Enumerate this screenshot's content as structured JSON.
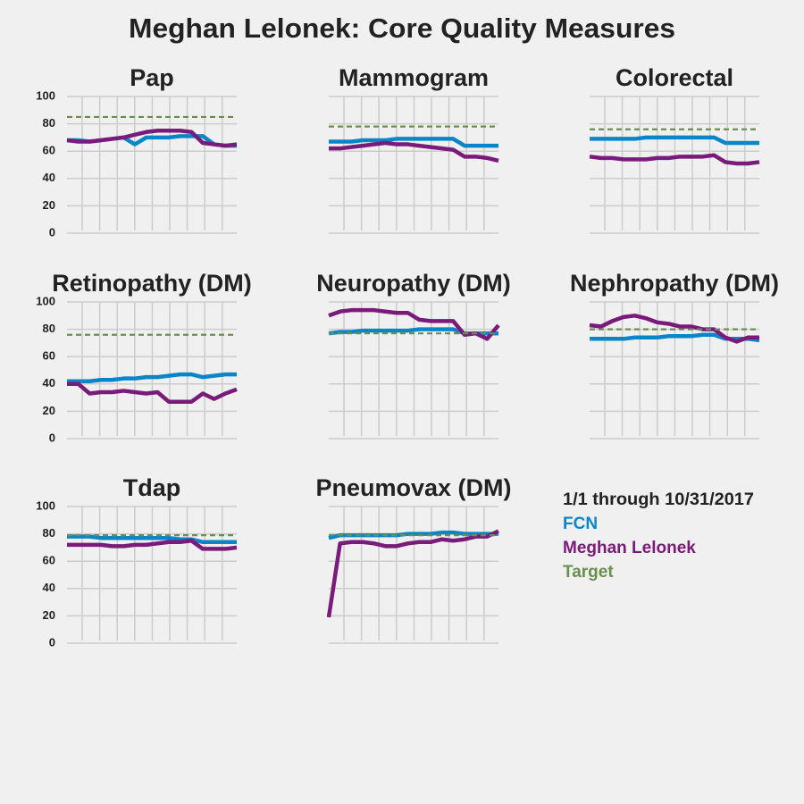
{
  "title": "Meghan Lelonek: Core Quality Measures",
  "legend_title": "1/1 through 10/31/2017",
  "chart_data": [
    {
      "type": "line",
      "title": "Pap",
      "ylim": [
        0,
        100
      ],
      "yticks": [
        0,
        20,
        40,
        60,
        80,
        100
      ],
      "ytick_labels": true,
      "grid": true,
      "categories": [
        null,
        null,
        null,
        null,
        null,
        null,
        null,
        null,
        null,
        null,
        null,
        null,
        null,
        null,
        null,
        null
      ],
      "series": [
        {
          "name": "FCN",
          "color": "#0a86c8",
          "values": [
            68,
            68,
            67,
            68,
            69,
            70,
            65,
            70,
            70,
            70,
            71,
            71,
            71,
            65,
            64,
            64
          ]
        },
        {
          "name": "Meghan Lelonek",
          "color": "#7a1a7a",
          "values": [
            68,
            67,
            67,
            68,
            69,
            70,
            72,
            74,
            75,
            75,
            75,
            74,
            66,
            65,
            64,
            65
          ]
        },
        {
          "name": "Target",
          "color": "#6a8f4d",
          "dashed": true,
          "value": 85
        }
      ]
    },
    {
      "type": "line",
      "title": "Mammogram",
      "ylim": [
        0,
        100
      ],
      "yticks": [
        0,
        20,
        40,
        60,
        80,
        100
      ],
      "ytick_labels": false,
      "grid": true,
      "categories": [
        null,
        null,
        null,
        null,
        null,
        null,
        null,
        null,
        null,
        null,
        null,
        null,
        null,
        null,
        null,
        null
      ],
      "series": [
        {
          "name": "FCN",
          "color": "#0a86c8",
          "values": [
            67,
            67,
            67,
            68,
            68,
            68,
            69,
            69,
            69,
            69,
            69,
            69,
            64,
            64,
            64,
            64
          ]
        },
        {
          "name": "Meghan Lelonek",
          "color": "#7a1a7a",
          "values": [
            62,
            62,
            63,
            64,
            65,
            66,
            65,
            65,
            64,
            63,
            62,
            61,
            56,
            56,
            55,
            53
          ]
        },
        {
          "name": "Target",
          "color": "#6a8f4d",
          "dashed": true,
          "value": 78
        }
      ]
    },
    {
      "type": "line",
      "title": "Colorectal",
      "ylim": [
        0,
        100
      ],
      "yticks": [
        0,
        20,
        40,
        60,
        80,
        100
      ],
      "ytick_labels": false,
      "grid": true,
      "categories": [
        null,
        null,
        null,
        null,
        null,
        null,
        null,
        null,
        null,
        null,
        null,
        null,
        null,
        null,
        null,
        null
      ],
      "series": [
        {
          "name": "FCN",
          "color": "#0a86c8",
          "values": [
            69,
            69,
            69,
            69,
            69,
            70,
            70,
            70,
            70,
            70,
            70,
            70,
            66,
            66,
            66,
            66
          ]
        },
        {
          "name": "Meghan Lelonek",
          "color": "#7a1a7a",
          "values": [
            56,
            55,
            55,
            54,
            54,
            54,
            55,
            55,
            56,
            56,
            56,
            57,
            52,
            51,
            51,
            52
          ]
        },
        {
          "name": "Target",
          "color": "#6a8f4d",
          "dashed": true,
          "value": 76
        }
      ]
    },
    {
      "type": "line",
      "title": "Retinopathy (DM)",
      "ylim": [
        0,
        100
      ],
      "yticks": [
        0,
        20,
        40,
        60,
        80,
        100
      ],
      "ytick_labels": true,
      "grid": true,
      "categories": [
        null,
        null,
        null,
        null,
        null,
        null,
        null,
        null,
        null,
        null,
        null,
        null,
        null,
        null,
        null,
        null
      ],
      "series": [
        {
          "name": "FCN",
          "color": "#0a86c8",
          "values": [
            42,
            42,
            42,
            43,
            43,
            44,
            44,
            45,
            45,
            46,
            47,
            47,
            45,
            46,
            47,
            47
          ]
        },
        {
          "name": "Meghan Lelonek",
          "color": "#7a1a7a",
          "values": [
            40,
            40,
            33,
            34,
            34,
            35,
            34,
            33,
            34,
            27,
            27,
            27,
            33,
            29,
            33,
            36
          ]
        },
        {
          "name": "Target",
          "color": "#6a8f4d",
          "dashed": true,
          "value": 76
        }
      ]
    },
    {
      "type": "line",
      "title": "Neuropathy (DM)",
      "ylim": [
        0,
        100
      ],
      "yticks": [
        0,
        20,
        40,
        60,
        80,
        100
      ],
      "ytick_labels": false,
      "grid": true,
      "categories": [
        null,
        null,
        null,
        null,
        null,
        null,
        null,
        null,
        null,
        null,
        null,
        null,
        null,
        null,
        null,
        null
      ],
      "series": [
        {
          "name": "FCN",
          "color": "#0a86c8",
          "values": [
            77,
            78,
            78,
            79,
            79,
            79,
            79,
            79,
            80,
            80,
            80,
            80,
            77,
            77,
            77,
            77
          ]
        },
        {
          "name": "Meghan Lelonek",
          "color": "#7a1a7a",
          "values": [
            90,
            93,
            94,
            94,
            94,
            93,
            92,
            92,
            87,
            86,
            86,
            86,
            76,
            77,
            73,
            83
          ]
        },
        {
          "name": "Target",
          "color": "#6a8f4d",
          "dashed": true,
          "value": 77
        }
      ]
    },
    {
      "type": "line",
      "title": "Nephropathy (DM)",
      "ylim": [
        0,
        100
      ],
      "yticks": [
        0,
        20,
        40,
        60,
        80,
        100
      ],
      "ytick_labels": false,
      "grid": true,
      "categories": [
        null,
        null,
        null,
        null,
        null,
        null,
        null,
        null,
        null,
        null,
        null,
        null,
        null,
        null,
        null,
        null
      ],
      "series": [
        {
          "name": "FCN",
          "color": "#0a86c8",
          "values": [
            73,
            73,
            73,
            73,
            74,
            74,
            74,
            75,
            75,
            75,
            76,
            76,
            73,
            73,
            73,
            72
          ]
        },
        {
          "name": "Meghan Lelonek",
          "color": "#7a1a7a",
          "values": [
            83,
            82,
            86,
            89,
            90,
            88,
            85,
            84,
            82,
            82,
            80,
            80,
            74,
            71,
            74,
            74
          ]
        },
        {
          "name": "Target",
          "color": "#6a8f4d",
          "dashed": true,
          "value": 80
        }
      ]
    },
    {
      "type": "line",
      "title": "Tdap",
      "ylim": [
        0,
        100
      ],
      "yticks": [
        0,
        20,
        40,
        60,
        80,
        100
      ],
      "ytick_labels": true,
      "grid": true,
      "categories": [
        null,
        null,
        null,
        null,
        null,
        null,
        null,
        null,
        null,
        null,
        null,
        null,
        null,
        null,
        null,
        null
      ],
      "series": [
        {
          "name": "FCN",
          "color": "#0a86c8",
          "values": [
            78,
            78,
            78,
            77,
            77,
            77,
            77,
            77,
            77,
            77,
            76,
            76,
            74,
            74,
            74,
            74
          ]
        },
        {
          "name": "Meghan Lelonek",
          "color": "#7a1a7a",
          "values": [
            72,
            72,
            72,
            72,
            71,
            71,
            72,
            72,
            73,
            74,
            74,
            75,
            69,
            69,
            69,
            70
          ]
        },
        {
          "name": "Target",
          "color": "#6a8f4d",
          "dashed": true,
          "value": 79
        }
      ]
    },
    {
      "type": "line",
      "title": "Pneumovax (DM)",
      "ylim": [
        0,
        100
      ],
      "yticks": [
        0,
        20,
        40,
        60,
        80,
        100
      ],
      "ytick_labels": false,
      "grid": true,
      "categories": [
        null,
        null,
        null,
        null,
        null,
        null,
        null,
        null,
        null,
        null,
        null,
        null,
        null,
        null,
        null,
        null
      ],
      "series": [
        {
          "name": "FCN",
          "color": "#0a86c8",
          "values": [
            77,
            79,
            79,
            79,
            79,
            79,
            79,
            80,
            80,
            80,
            81,
            81,
            80,
            80,
            80,
            80
          ]
        },
        {
          "name": "Meghan Lelonek",
          "color": "#7a1a7a",
          "values": [
            19,
            73,
            74,
            74,
            73,
            71,
            71,
            73,
            74,
            74,
            76,
            75,
            76,
            78,
            78,
            82
          ]
        },
        {
          "name": "Target",
          "color": "#6a8f4d",
          "dashed": true,
          "value": 79
        }
      ]
    }
  ]
}
